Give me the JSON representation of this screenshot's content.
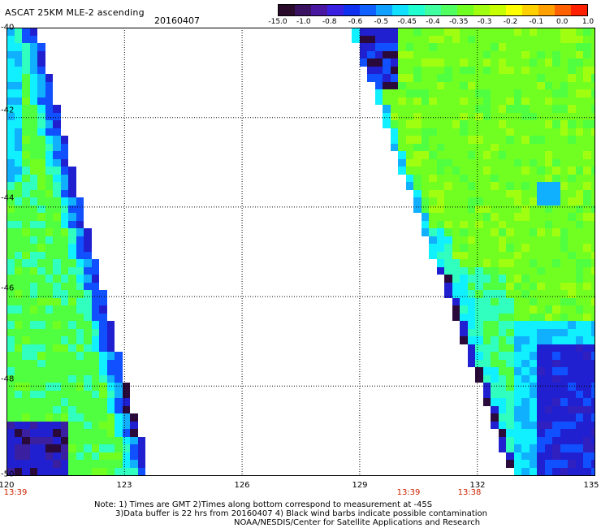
{
  "header": {
    "title": "ASCAT 25KM MLE-2 ascending",
    "date": "20160407"
  },
  "colorbar": {
    "labels": [
      "-15.0",
      "-1.0",
      "-0.8",
      "-0.6",
      "-0.5",
      "-0.45",
      "-0.4",
      "-0.35",
      "-0.3",
      "-0.2",
      "-0.1",
      "0.0",
      "1.0"
    ],
    "colors": [
      "#2a0a2a",
      "#3a1060",
      "#4a18a0",
      "#3a20e0",
      "#1030f0",
      "#1060ff",
      "#10a0ff",
      "#10e0ff",
      "#20ffd0",
      "#40ffa0",
      "#50ff60",
      "#70ff20",
      "#a0ff10",
      "#c8ff00",
      "#ffff00",
      "#ffd000",
      "#ffa000",
      "#ff6000",
      "#ff2000"
    ]
  },
  "map": {
    "lon_range": [
      120,
      135
    ],
    "lat_range": [
      -40,
      -50
    ],
    "lon_ticks": [
      "120",
      "123",
      "126",
      "129",
      "132",
      "135"
    ],
    "lat_ticks": [
      "-40",
      "-42",
      "-44",
      "-46",
      "-48",
      "-50"
    ],
    "time_labels": [
      "13:39",
      "13:39",
      "13:38"
    ],
    "palette": {
      "deep": "#2a0a3a",
      "navy": "#2020d0",
      "blue": "#1050ff",
      "sky": "#10b0ff",
      "cyan": "#10f0ff",
      "aqua": "#30ffc0",
      "green": "#50ff40",
      "lime": "#70ff20",
      "yellowgreen": "#a0ff10"
    }
  },
  "notes": {
    "line1": "Note: 1) Times are GMT 2)Times along bottom correspond to measurement at -45S",
    "line2": "3)Data buffer is 22 hrs from 20160407 4) Black wind barbs indicate possible contamination",
    "line3": "NOAA/NESDIS/Center for Satellite Applications and Research"
  }
}
